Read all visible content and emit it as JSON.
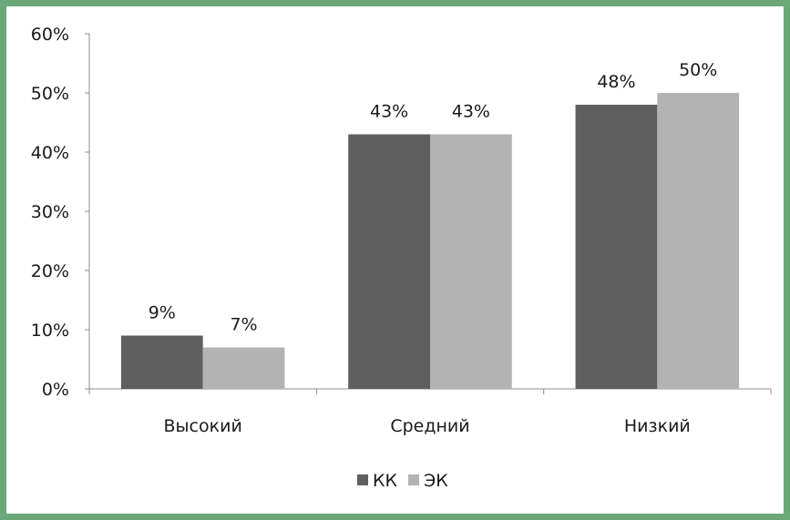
{
  "chart_data": {
    "type": "bar",
    "categories": [
      "Высокий",
      "Средний",
      "Низкий"
    ],
    "series": [
      {
        "name": "КК",
        "values": [
          9,
          43,
          48
        ],
        "labels": [
          "9%",
          "43%",
          "48%"
        ],
        "color": "#5f5f5f"
      },
      {
        "name": "ЭК",
        "values": [
          7,
          43,
          50
        ],
        "labels": [
          "7%",
          "43%",
          "50%"
        ],
        "color": "#b3b3b3"
      }
    ],
    "ylim": [
      0,
      60
    ],
    "yticks": [
      "0%",
      "10%",
      "20%",
      "30%",
      "40%",
      "50%",
      "60%"
    ],
    "grid": false,
    "legend_position": "bottom",
    "title": "",
    "xlabel": "",
    "ylabel": ""
  },
  "colors": {
    "frame": "#6aa878",
    "axis": "#8c8c8c"
  }
}
